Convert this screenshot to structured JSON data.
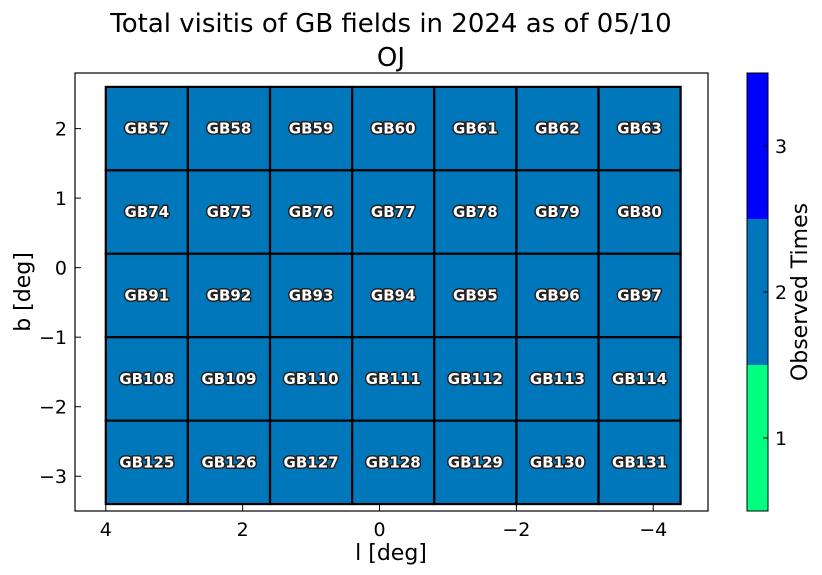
{
  "chart_data": {
    "type": "heatmap",
    "title": "Total visitis of GB fields in 2024 as of 05/10",
    "subtitle": "OJ",
    "xlabel": "l [deg]",
    "ylabel": "b [deg]",
    "xlim": [
      4.45,
      -4.8
    ],
    "ylim": [
      -3.5,
      2.8
    ],
    "xticks": [
      4,
      2,
      0,
      -2,
      -4
    ],
    "xtick_labels": [
      "4",
      "2",
      "0",
      "−2",
      "−4"
    ],
    "yticks": [
      2,
      1,
      0,
      -1,
      -2,
      -3
    ],
    "ytick_labels": [
      "2",
      "1",
      "0",
      "−1",
      "−2",
      "−3"
    ],
    "grid": false,
    "colorbar": {
      "label": "Observed Times",
      "ticks": [
        1,
        2,
        3
      ],
      "tick_labels": [
        "1",
        "2",
        "3"
      ],
      "range": [
        0.5,
        3.5
      ],
      "bins": [
        {
          "from": 0.5,
          "to": 1.5,
          "color": "#00ff80"
        },
        {
          "from": 1.5,
          "to": 2.5,
          "color": "#0077bb"
        },
        {
          "from": 2.5,
          "to": 3.5,
          "color": "#0000ff"
        }
      ]
    },
    "field_grid": {
      "l_edges": [
        4.0,
        2.8,
        1.6,
        0.4,
        -0.8,
        -2.0,
        -3.2,
        -4.4
      ],
      "b_edges": [
        2.6,
        1.4,
        0.2,
        -1.0,
        -2.2,
        -3.4
      ]
    },
    "fields": [
      {
        "name": "GB57",
        "row": 0,
        "col": 0,
        "value": 2
      },
      {
        "name": "GB58",
        "row": 0,
        "col": 1,
        "value": 2
      },
      {
        "name": "GB59",
        "row": 0,
        "col": 2,
        "value": 2
      },
      {
        "name": "GB60",
        "row": 0,
        "col": 3,
        "value": 2
      },
      {
        "name": "GB61",
        "row": 0,
        "col": 4,
        "value": 2
      },
      {
        "name": "GB62",
        "row": 0,
        "col": 5,
        "value": 2
      },
      {
        "name": "GB63",
        "row": 0,
        "col": 6,
        "value": 2
      },
      {
        "name": "GB74",
        "row": 1,
        "col": 0,
        "value": 2
      },
      {
        "name": "GB75",
        "row": 1,
        "col": 1,
        "value": 2
      },
      {
        "name": "GB76",
        "row": 1,
        "col": 2,
        "value": 2
      },
      {
        "name": "GB77",
        "row": 1,
        "col": 3,
        "value": 2
      },
      {
        "name": "GB78",
        "row": 1,
        "col": 4,
        "value": 2
      },
      {
        "name": "GB79",
        "row": 1,
        "col": 5,
        "value": 2
      },
      {
        "name": "GB80",
        "row": 1,
        "col": 6,
        "value": 2
      },
      {
        "name": "GB91",
        "row": 2,
        "col": 0,
        "value": 2
      },
      {
        "name": "GB92",
        "row": 2,
        "col": 1,
        "value": 2
      },
      {
        "name": "GB93",
        "row": 2,
        "col": 2,
        "value": 2
      },
      {
        "name": "GB94",
        "row": 2,
        "col": 3,
        "value": 2
      },
      {
        "name": "GB95",
        "row": 2,
        "col": 4,
        "value": 2
      },
      {
        "name": "GB96",
        "row": 2,
        "col": 5,
        "value": 2
      },
      {
        "name": "GB97",
        "row": 2,
        "col": 6,
        "value": 2
      },
      {
        "name": "GB108",
        "row": 3,
        "col": 0,
        "value": 2
      },
      {
        "name": "GB109",
        "row": 3,
        "col": 1,
        "value": 2
      },
      {
        "name": "GB110",
        "row": 3,
        "col": 2,
        "value": 2
      },
      {
        "name": "GB111",
        "row": 3,
        "col": 3,
        "value": 2
      },
      {
        "name": "GB112",
        "row": 3,
        "col": 4,
        "value": 2
      },
      {
        "name": "GB113",
        "row": 3,
        "col": 5,
        "value": 2
      },
      {
        "name": "GB114",
        "row": 3,
        "col": 6,
        "value": 2
      },
      {
        "name": "GB125",
        "row": 4,
        "col": 0,
        "value": 2
      },
      {
        "name": "GB126",
        "row": 4,
        "col": 1,
        "value": 2
      },
      {
        "name": "GB127",
        "row": 4,
        "col": 2,
        "value": 2
      },
      {
        "name": "GB128",
        "row": 4,
        "col": 3,
        "value": 2
      },
      {
        "name": "GB129",
        "row": 4,
        "col": 4,
        "value": 2
      },
      {
        "name": "GB130",
        "row": 4,
        "col": 5,
        "value": 2
      },
      {
        "name": "GB131",
        "row": 4,
        "col": 6,
        "value": 2
      }
    ]
  }
}
